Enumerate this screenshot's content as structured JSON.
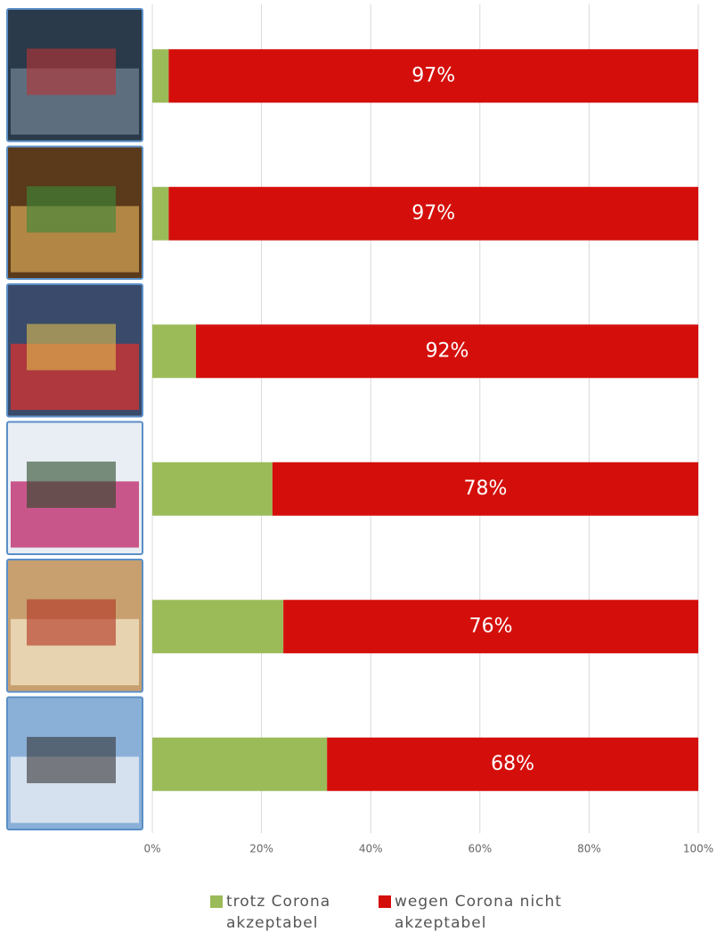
{
  "chart_data": {
    "type": "stacked-bar-horizontal",
    "categories": [
      null,
      null,
      null,
      null,
      null,
      null
    ],
    "series": [
      {
        "name": "trotz Corona akzeptabel",
        "color": "#9bbb59",
        "values": [
          3,
          3,
          8,
          22,
          24,
          32
        ]
      },
      {
        "name": "wegen Corona nicht akzeptabel",
        "color": "#d40f0b",
        "values": [
          97,
          97,
          92,
          78,
          76,
          68
        ],
        "value_labels": [
          "97%",
          "97%",
          "92%",
          "78%",
          "76%",
          "68%"
        ]
      }
    ],
    "xlim": [
      0,
      100
    ],
    "xticks": [
      {
        "value": 0,
        "label": "0%"
      },
      {
        "value": 20,
        "label": "20%"
      },
      {
        "value": 40,
        "label": "40%"
      },
      {
        "value": 60,
        "label": "60%"
      },
      {
        "value": 80,
        "label": "80%"
      },
      {
        "value": 100,
        "label": "100%"
      }
    ],
    "grid": true,
    "legend": "bottom"
  }
}
